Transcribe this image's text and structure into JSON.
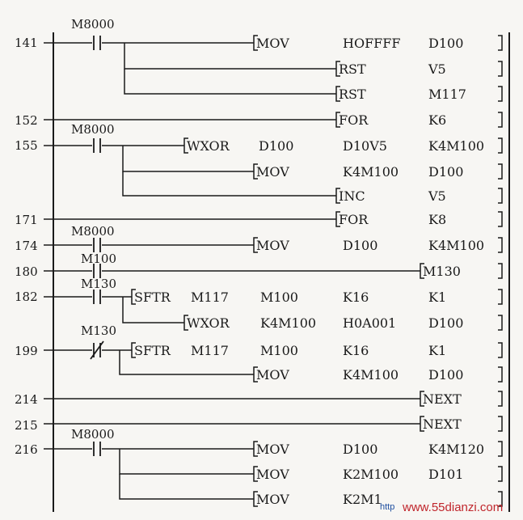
{
  "rungs": [
    {
      "step": "141",
      "contact": "M8000"
    },
    {
      "step": "152",
      "contact": ""
    },
    {
      "step": "155",
      "contact": "M8000"
    },
    {
      "step": "171",
      "contact": ""
    },
    {
      "step": "174",
      "contact": "M8000"
    },
    {
      "step": "180",
      "contact": "M100"
    },
    {
      "step": "182",
      "contact": "M130"
    },
    {
      "step": "199",
      "contact": "M130"
    },
    {
      "step": "214",
      "contact": ""
    },
    {
      "step": "215",
      "contact": ""
    },
    {
      "step": "216",
      "contact": "M8000"
    }
  ],
  "instructions": [
    {
      "id": "i141a",
      "mn": "MOV",
      "ops": [
        "HOFFFF",
        "D100"
      ]
    },
    {
      "id": "i141b",
      "mn": "RST",
      "ops": [
        "",
        "V5"
      ]
    },
    {
      "id": "i141c",
      "mn": "RST",
      "ops": [
        "",
        "M117"
      ]
    },
    {
      "id": "i152",
      "mn": "FOR",
      "ops": [
        "",
        "K6"
      ]
    },
    {
      "id": "i155a",
      "mn": "WXOR",
      "ops": [
        "D100",
        "D10V5",
        "K4M100"
      ]
    },
    {
      "id": "i155b",
      "mn": "MOV",
      "ops": [
        "K4M100",
        "D100"
      ]
    },
    {
      "id": "i155c",
      "mn": "INC",
      "ops": [
        "",
        "V5"
      ]
    },
    {
      "id": "i171",
      "mn": "FOR",
      "ops": [
        "",
        "K8"
      ]
    },
    {
      "id": "i174",
      "mn": "MOV",
      "ops": [
        "D100",
        "K4M100"
      ]
    },
    {
      "id": "i180",
      "mn": "M130",
      "ops": []
    },
    {
      "id": "i182a",
      "mn": "SFTR",
      "ops": [
        "M117",
        "M100",
        "K16",
        "K1"
      ]
    },
    {
      "id": "i182b",
      "mn": "WXOR",
      "ops": [
        "K4M100",
        "H0A001",
        "D100"
      ]
    },
    {
      "id": "i199a",
      "mn": "SFTR",
      "ops": [
        "M117",
        "M100",
        "K16",
        "K1"
      ]
    },
    {
      "id": "i199b",
      "mn": "MOV",
      "ops": [
        "K4M100",
        "D100"
      ]
    },
    {
      "id": "i214",
      "mn": "NEXT",
      "ops": []
    },
    {
      "id": "i215",
      "mn": "NEXT",
      "ops": []
    },
    {
      "id": "i216a",
      "mn": "MOV",
      "ops": [
        "D100",
        "K4M120"
      ]
    },
    {
      "id": "i216b",
      "mn": "MOV",
      "ops": [
        "K2M100",
        "D101"
      ]
    },
    {
      "id": "i216c",
      "mn": "MOV",
      "ops": [
        "K2M1"
      ]
    }
  ],
  "watermark": {
    "text": "www.55dianzi.com",
    "prefix": "http"
  }
}
